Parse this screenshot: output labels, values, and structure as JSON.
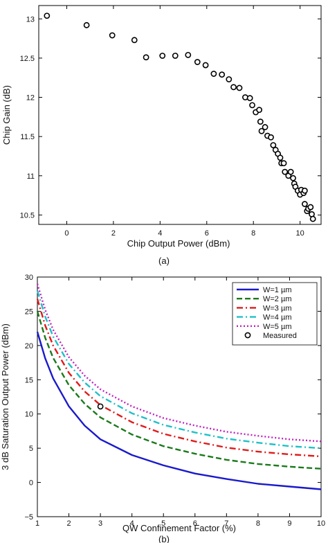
{
  "chart_data": [
    {
      "type": "scatter",
      "panel_label": "(a)",
      "xlabel": "Chip Output Power (dBm)",
      "ylabel": "Chip Gain (dB)",
      "xlim": [
        -1.2,
        10.9
      ],
      "ylim": [
        10.38,
        13.17
      ],
      "x_ticks": [
        0,
        2,
        4,
        6,
        8,
        10
      ],
      "y_ticks": [
        10.5,
        11,
        11.5,
        12,
        12.5,
        13
      ],
      "y_tick_labels": [
        "10.5",
        "11",
        "11.5",
        "12",
        "12.5",
        "13"
      ],
      "grid": false,
      "series": [
        {
          "marker": "open-circle",
          "color": "#000000",
          "points": [
            [
              -0.85,
              13.04
            ],
            [
              0.85,
              12.92
            ],
            [
              1.95,
              12.79
            ],
            [
              2.9,
              12.73
            ],
            [
              3.4,
              12.51
            ],
            [
              4.1,
              12.53
            ],
            [
              4.65,
              12.53
            ],
            [
              5.2,
              12.54
            ],
            [
              5.6,
              12.45
            ],
            [
              5.95,
              12.41
            ],
            [
              6.3,
              12.3
            ],
            [
              6.65,
              12.29
            ],
            [
              6.95,
              12.23
            ],
            [
              7.15,
              12.13
            ],
            [
              7.4,
              12.12
            ],
            [
              7.65,
              12.0
            ],
            [
              7.85,
              11.99
            ],
            [
              7.95,
              11.9
            ],
            [
              8.1,
              11.81
            ],
            [
              8.25,
              11.84
            ],
            [
              8.3,
              11.69
            ],
            [
              8.35,
              11.57
            ],
            [
              8.5,
              11.62
            ],
            [
              8.6,
              11.51
            ],
            [
              8.75,
              11.49
            ],
            [
              8.85,
              11.39
            ],
            [
              8.95,
              11.33
            ],
            [
              9.05,
              11.28
            ],
            [
              9.15,
              11.23
            ],
            [
              9.2,
              11.16
            ],
            [
              9.3,
              11.16
            ],
            [
              9.35,
              11.05
            ],
            [
              9.5,
              11.0
            ],
            [
              9.6,
              11.05
            ],
            [
              9.7,
              10.97
            ],
            [
              9.75,
              10.9
            ],
            [
              9.8,
              10.86
            ],
            [
              9.9,
              10.81
            ],
            [
              10.0,
              10.76
            ],
            [
              10.05,
              10.82
            ],
            [
              10.15,
              10.78
            ],
            [
              10.2,
              10.81
            ],
            [
              10.2,
              10.64
            ],
            [
              10.3,
              10.55
            ],
            [
              10.35,
              10.58
            ],
            [
              10.45,
              10.6
            ],
            [
              10.5,
              10.51
            ],
            [
              10.55,
              10.45
            ]
          ]
        }
      ]
    },
    {
      "type": "line",
      "panel_label": "(b)",
      "xlabel": "QW Confinement Factor (%)",
      "ylabel": "3 dB Saturation Output Power (dBm)",
      "xlim": [
        1,
        10
      ],
      "ylim": [
        -5,
        30
      ],
      "x_ticks": [
        1,
        2,
        3,
        4,
        5,
        6,
        7,
        8,
        9,
        10
      ],
      "y_ticks": [
        -5,
        0,
        5,
        10,
        15,
        20,
        25,
        30
      ],
      "y_tick_labels": [
        "−5",
        "0",
        "5",
        "10",
        "15",
        "20",
        "25",
        "30"
      ],
      "grid": false,
      "legend_position": "top-right",
      "x": [
        1,
        1.25,
        1.5,
        2,
        2.5,
        3,
        4,
        5,
        6,
        7,
        8,
        9,
        10
      ],
      "series": [
        {
          "name": "W=1 µm",
          "style": "solid",
          "color": "#1a1acc",
          "values": [
            22.0,
            18.1,
            15.2,
            11.1,
            8.3,
            6.3,
            4.0,
            2.5,
            1.3,
            0.5,
            -0.2,
            -0.6,
            -1.0
          ]
        },
        {
          "name": "W=2 µm",
          "style": "dashed",
          "color": "#1a7a1a",
          "values": [
            25.0,
            21.1,
            18.2,
            14.2,
            11.5,
            9.5,
            7.0,
            5.3,
            4.2,
            3.3,
            2.7,
            2.3,
            2.0
          ]
        },
        {
          "name": "W=3 µm",
          "style": "dashdot",
          "color": "#e01a1a",
          "values": [
            26.8,
            22.9,
            20.0,
            16.0,
            13.3,
            11.3,
            8.8,
            7.1,
            6.0,
            5.1,
            4.5,
            4.1,
            3.8
          ]
        },
        {
          "name": "W=4 µm",
          "style": "dashdot",
          "color": "#20c0c8",
          "values": [
            28.0,
            24.2,
            21.3,
            17.3,
            14.6,
            12.6,
            10.1,
            8.4,
            7.3,
            6.4,
            5.8,
            5.3,
            5.0
          ]
        },
        {
          "name": "W=5 µm",
          "style": "dotted",
          "color": "#c020c0",
          "values": [
            29.0,
            25.2,
            22.3,
            18.3,
            15.6,
            13.6,
            11.1,
            9.4,
            8.3,
            7.4,
            6.8,
            6.3,
            6.0
          ]
        }
      ],
      "measured": {
        "name": "Measured",
        "marker": "open-circle",
        "points": [
          [
            3.0,
            11.1
          ]
        ]
      }
    }
  ]
}
